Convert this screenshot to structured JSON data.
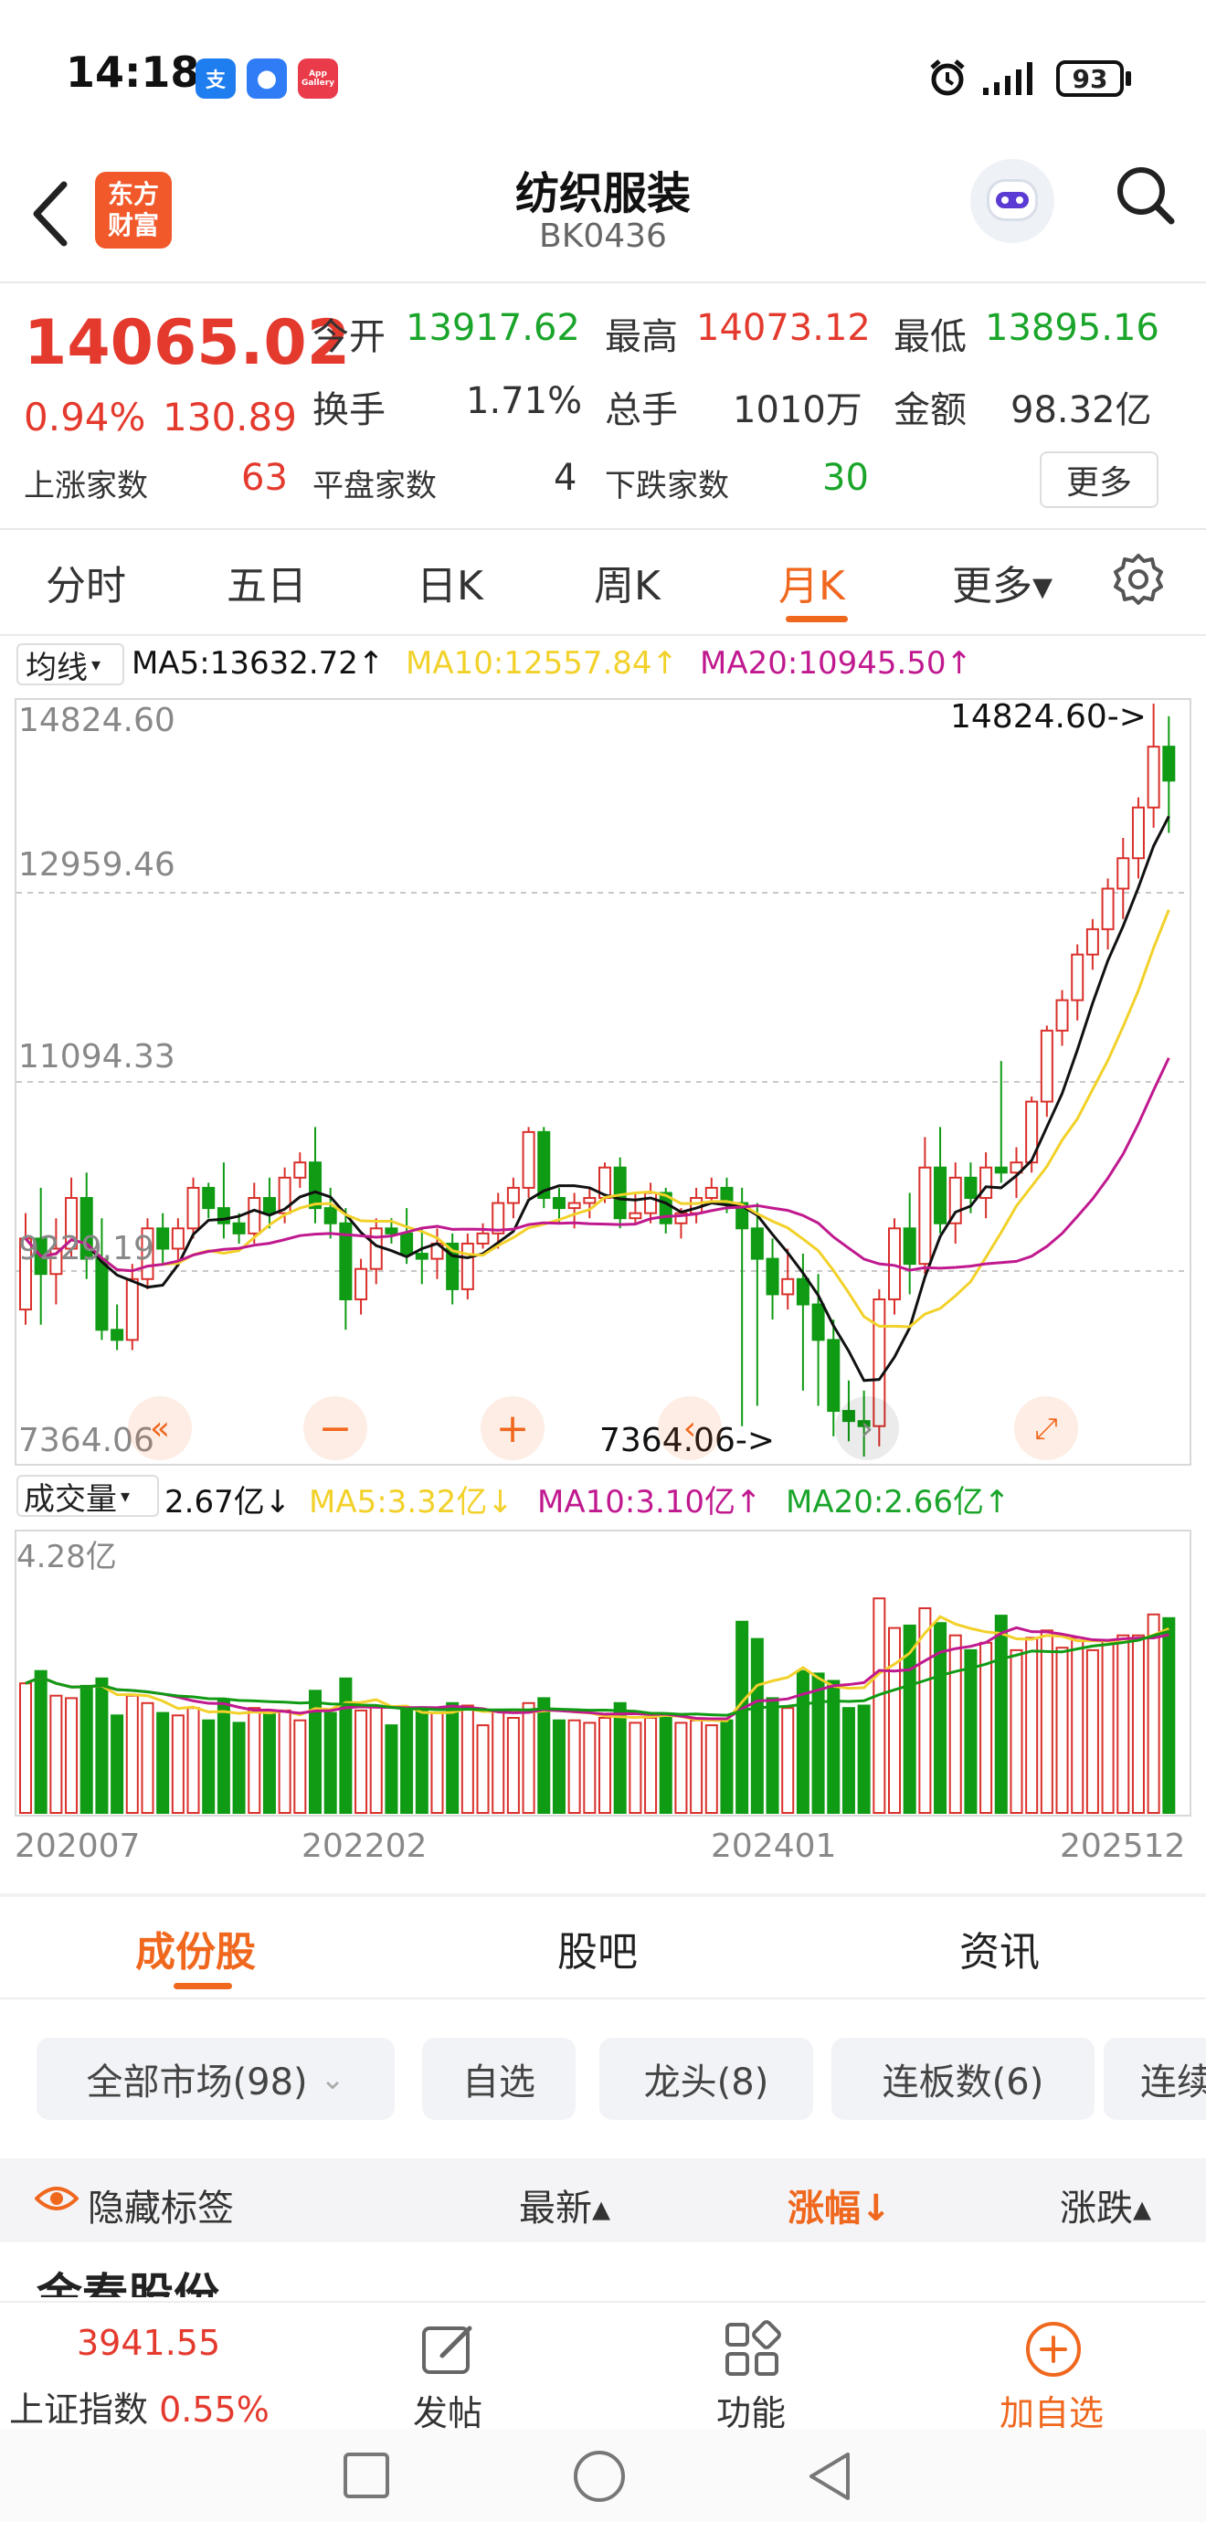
{
  "status": {
    "time": "14:18",
    "battery": "93",
    "badges": [
      "支",
      "●",
      "App Gallery"
    ]
  },
  "header": {
    "title": "纺织服装",
    "code": "BK0436",
    "logo_text_1": "东方",
    "logo_text_2": "财富"
  },
  "quote": {
    "price": "14065.02",
    "pct": "0.94%",
    "change": "130.89",
    "open_label": "今开",
    "open": "13917.62",
    "high_label": "最高",
    "high": "14073.12",
    "low_label": "最低",
    "low": "13895.16",
    "turnover_label": "换手",
    "turnover": "1.71%",
    "volume_label": "总手",
    "volume": "1010万",
    "amount_label": "金额",
    "amount": "98.32亿",
    "up_label": "上涨家数",
    "up": "63",
    "flat_label": "平盘家数",
    "flat": "4",
    "down_label": "下跌家数",
    "down": "30",
    "more": "更多"
  },
  "tabs": [
    "分时",
    "五日",
    "日K",
    "周K",
    "月K",
    "更多▾"
  ],
  "active_tab": "月K",
  "ma_legend": {
    "selector": "均线",
    "ma5": "MA5:13632.72↑",
    "ma10": "MA10:12557.84↑",
    "ma20": "MA20:10945.50↑"
  },
  "price_axis": [
    "14824.60",
    "12959.46",
    "11094.33",
    "9229.19",
    "7364.06"
  ],
  "annotations": {
    "max": "14824.60->",
    "min": "7364.06->"
  },
  "vol_legend": {
    "selector": "成交量",
    "value": "2.67亿↓",
    "ma5": "MA5:3.32亿↓",
    "ma10": "MA10:3.10亿↑",
    "ma20": "MA20:2.66亿↑"
  },
  "vol_axis_top": "4.28亿",
  "x_labels": [
    "202007",
    "202202",
    "202401",
    "202512"
  ],
  "colors": {
    "up": "#d9302b",
    "down": "#0f9b13",
    "ma5": "#111111",
    "ma10": "#f2d12a",
    "ma20": "#c0198f",
    "accent": "#f0671e"
  },
  "chart_data": {
    "type": "candlestick",
    "ylim": [
      7364.06,
      14824.6
    ],
    "ma_levels": {
      "ma5": 13632.72,
      "ma10": 12557.84,
      "ma20": 10945.5
    },
    "ohlc": [
      [
        8850,
        9800,
        8700,
        9550
      ],
      [
        9550,
        10050,
        8700,
        9200
      ],
      [
        9200,
        9750,
        8900,
        9450
      ],
      [
        9450,
        10150,
        9350,
        9950
      ],
      [
        9950,
        10200,
        9150,
        9350
      ],
      [
        9350,
        9750,
        8550,
        8650
      ],
      [
        8650,
        8900,
        8450,
        8550
      ],
      [
        8550,
        9300,
        8450,
        9150
      ],
      [
        9150,
        9750,
        9050,
        9650
      ],
      [
        9650,
        9800,
        9300,
        9450
      ],
      [
        9450,
        9750,
        9300,
        9650
      ],
      [
        9650,
        10150,
        9550,
        10050
      ],
      [
        10050,
        10100,
        9750,
        9850
      ],
      [
        9850,
        10300,
        9550,
        9700
      ],
      [
        9700,
        9800,
        9500,
        9600
      ],
      [
        9600,
        10100,
        9500,
        9950
      ],
      [
        9950,
        10150,
        9650,
        9800
      ],
      [
        9800,
        10250,
        9700,
        10150
      ],
      [
        10150,
        10400,
        10050,
        10300
      ],
      [
        10300,
        10650,
        9700,
        9850
      ],
      [
        9850,
        10050,
        9550,
        9700
      ],
      [
        9700,
        9850,
        8650,
        8950
      ],
      [
        8950,
        9350,
        8800,
        9250
      ],
      [
        9250,
        9750,
        9100,
        9650
      ],
      [
        9650,
        9750,
        9500,
        9600
      ],
      [
        9600,
        9850,
        9300,
        9400
      ],
      [
        9400,
        9650,
        9100,
        9350
      ],
      [
        9350,
        9650,
        9150,
        9500
      ],
      [
        9500,
        9600,
        8900,
        9050
      ],
      [
        9050,
        9600,
        8950,
        9500
      ],
      [
        9500,
        9700,
        9450,
        9600
      ],
      [
        9600,
        10000,
        9450,
        9900
      ],
      [
        9900,
        10150,
        9750,
        10050
      ],
      [
        10050,
        10650,
        9950,
        10600
      ],
      [
        10600,
        10650,
        9850,
        9950
      ],
      [
        9950,
        10050,
        9700,
        9850
      ],
      [
        9850,
        10000,
        9650,
        9900
      ],
      [
        9900,
        10050,
        9750,
        9950
      ],
      [
        9950,
        10300,
        9900,
        10250
      ],
      [
        10250,
        10350,
        9650,
        9750
      ],
      [
        9750,
        10000,
        9700,
        9800
      ],
      [
        9800,
        10100,
        9700,
        10000
      ],
      [
        10000,
        10050,
        9600,
        9700
      ],
      [
        9700,
        9850,
        9550,
        9800
      ],
      [
        9800,
        10050,
        9700,
        9950
      ],
      [
        9950,
        10150,
        9900,
        10050
      ],
      [
        10050,
        10150,
        9800,
        9900
      ],
      [
        9900,
        10050,
        7700,
        9650
      ],
      [
        9650,
        9900,
        7900,
        9350
      ],
      [
        9350,
        9550,
        8750,
        9000
      ],
      [
        9000,
        9450,
        8850,
        9150
      ],
      [
        9150,
        9400,
        8050,
        8900
      ],
      [
        8900,
        9200,
        7900,
        8550
      ],
      [
        8550,
        8750,
        7600,
        7850
      ],
      [
        7850,
        8150,
        7550,
        7750
      ],
      [
        7750,
        8050,
        7400,
        7700
      ],
      [
        7700,
        9050,
        7500,
        8950
      ],
      [
        8950,
        9750,
        8800,
        9650
      ],
      [
        9650,
        10000,
        9000,
        9300
      ],
      [
        9300,
        10550,
        9200,
        10250
      ],
      [
        10250,
        10650,
        9600,
        9700
      ],
      [
        9700,
        10300,
        9500,
        10150
      ],
      [
        10150,
        10300,
        9800,
        9950
      ],
      [
        9950,
        10400,
        9750,
        10250
      ],
      [
        10250,
        11300,
        10100,
        10200
      ],
      [
        10200,
        10450,
        9950,
        10300
      ],
      [
        10300,
        10950,
        10200,
        10900
      ],
      [
        10900,
        11650,
        10750,
        11600
      ],
      [
        11600,
        12000,
        11450,
        11900
      ],
      [
        11900,
        12450,
        11700,
        12350
      ],
      [
        12350,
        12700,
        12200,
        12600
      ],
      [
        12600,
        13100,
        12400,
        13000
      ],
      [
        13000,
        13500,
        12700,
        13300
      ],
      [
        13300,
        13900,
        13100,
        13800
      ],
      [
        13800,
        14824.6,
        13600,
        14400
      ],
      [
        14400,
        14700,
        13550,
        14065.02
      ]
    ]
  }
}
